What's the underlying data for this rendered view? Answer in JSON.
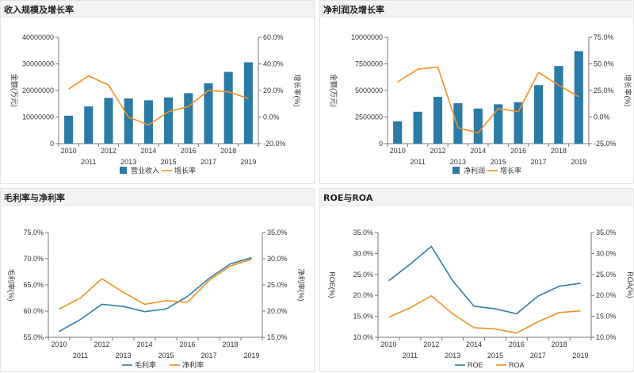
{
  "chart_data": [
    {
      "type": "bar",
      "title": "收入规模及增长率",
      "x": [
        "2010",
        "2011",
        "2012",
        "2013",
        "2014",
        "2015",
        "2016",
        "2017",
        "2018",
        "2019"
      ],
      "series": [
        {
          "name": "营业收入",
          "type": "bar",
          "axis": "left",
          "values": [
            10500000,
            14000000,
            17200000,
            17000000,
            16300000,
            17400000,
            19000000,
            22700000,
            27000000,
            30600000
          ]
        },
        {
          "name": "增长率",
          "type": "line",
          "axis": "right",
          "values": [
            21,
            31,
            24,
            0,
            -6,
            4,
            8,
            20,
            19,
            14
          ]
        }
      ],
      "ylabel_left": "金额(万元)",
      "ylabel_right": "增长率(%)",
      "yticks_left": [
        "40000000",
        "30000000",
        "20000000",
        "10000000",
        "0"
      ],
      "yticks_right": [
        "60.0%",
        "40.0%",
        "20.0%",
        "0.0%",
        "-20.0%"
      ],
      "ylim_left": [
        0,
        40000000
      ],
      "ylim_right": [
        -20,
        60
      ],
      "legend": "bottom"
    },
    {
      "type": "bar",
      "title": "净利润及增长率",
      "x": [
        "2010",
        "2011",
        "2012",
        "2013",
        "2014",
        "2015",
        "2016",
        "2017",
        "2018",
        "2019"
      ],
      "series": [
        {
          "name": "净利润",
          "type": "bar",
          "axis": "left",
          "values": [
            2100000,
            3000000,
            4400000,
            3800000,
            3300000,
            3700000,
            3900000,
            5500000,
            7300000,
            8700000
          ]
        },
        {
          "name": "增长率",
          "type": "line",
          "axis": "right",
          "values": [
            33,
            45,
            47,
            -10,
            -15,
            8,
            5,
            42,
            30,
            19
          ]
        }
      ],
      "ylabel_left": "金额(万元)",
      "ylabel_right": "增长率(%)",
      "yticks_left": [
        "10000000",
        "7500000",
        "5000000",
        "2500000",
        "0"
      ],
      "yticks_right": [
        "75.0%",
        "50.0%",
        "25.0%",
        "0.0%",
        "-25.0%"
      ],
      "ylim_left": [
        0,
        10000000
      ],
      "ylim_right": [
        -25,
        75
      ],
      "legend": "bottom"
    },
    {
      "type": "line",
      "title": "毛利率与净利率",
      "x": [
        "2010",
        "2011",
        "2012",
        "2013",
        "2014",
        "2015",
        "2016",
        "2017",
        "2018",
        "2019"
      ],
      "series": [
        {
          "name": "毛利率",
          "type": "line",
          "axis": "left",
          "values": [
            56.1,
            58.4,
            61.3,
            60.9,
            59.9,
            60.4,
            62.8,
            66.2,
            69.0,
            70.2
          ]
        },
        {
          "name": "净利率",
          "type": "line",
          "axis": "right",
          "values": [
            20.4,
            22.5,
            26.2,
            23.6,
            21.3,
            22.0,
            21.7,
            25.8,
            28.6,
            29.9
          ]
        }
      ],
      "ylabel_left": "毛利率(%)",
      "ylabel_right": "净利率(%)",
      "yticks_left": [
        "75.0%",
        "70.0%",
        "65.0%",
        "60.0%",
        "55.0%"
      ],
      "yticks_right": [
        "35.0%",
        "30.0%",
        "25.0%",
        "20.0%",
        "15.0%"
      ],
      "ylim_left": [
        55,
        75
      ],
      "ylim_right": [
        15,
        35
      ],
      "legend": "bottom"
    },
    {
      "type": "line",
      "title": "ROE与ROA",
      "x": [
        "2010",
        "2011",
        "2012",
        "2013",
        "2014",
        "2015",
        "2016",
        "2017",
        "2018",
        "2019"
      ],
      "series": [
        {
          "name": "ROE",
          "type": "line",
          "axis": "left",
          "values": [
            23.5,
            27.4,
            31.7,
            23.5,
            17.4,
            16.8,
            15.6,
            19.8,
            22.2,
            22.9
          ]
        },
        {
          "name": "ROA",
          "type": "line",
          "axis": "right",
          "values": [
            14.8,
            17.0,
            19.9,
            15.6,
            12.3,
            12.0,
            11.0,
            13.7,
            15.9,
            16.3
          ]
        }
      ],
      "ylabel_left": "ROE(%)",
      "ylabel_right": "ROA(%)",
      "yticks_left": [
        "35.0%",
        "30.0%",
        "25.0%",
        "20.0%",
        "15.0%",
        "10.0%"
      ],
      "yticks_right": [
        "35.0%",
        "30.0%",
        "25.0%",
        "20.0%",
        "15.0%",
        "10.0%"
      ],
      "ylim_left": [
        10,
        35
      ],
      "ylim_right": [
        10,
        35
      ],
      "legend": "bottom"
    }
  ],
  "colors": {
    "bar": "#2a7ba5",
    "line_orange": "#f29121",
    "line_blue": "#2e7ea7",
    "axis": "#777777",
    "tick_text": "#333333"
  }
}
